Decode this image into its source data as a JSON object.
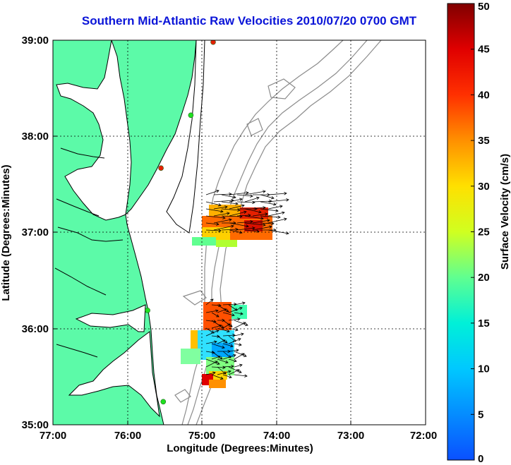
{
  "title": "Southern Mid-Atlantic Raw Velocities 2010/07/20 0700 GMT",
  "map": {
    "xlabel": "Longitude (Degrees:Minutes)",
    "ylabel": "Latitude (Degrees:Minutes)",
    "x_ticks": [
      "77:00",
      "76:00",
      "75:00",
      "74:00",
      "73:00",
      "72:00"
    ],
    "y_ticks": [
      "39:00",
      "38:00",
      "37:00",
      "36:00",
      "35:00"
    ],
    "lon_range": [
      -77,
      -72
    ],
    "lat_range": [
      35,
      39
    ],
    "grid": "dotted",
    "colors": {
      "land": "#5cfaa8",
      "coast": "#000000",
      "bathymetry": "#8c8c8c",
      "title": "#0a14d8"
    }
  },
  "stations": [
    {
      "lon": -74.85,
      "lat": 38.98,
      "status": "red"
    },
    {
      "lon": -75.15,
      "lat": 38.22,
      "status": "green"
    },
    {
      "lon": -75.55,
      "lat": 37.67,
      "status": "red"
    },
    {
      "lon": -75.73,
      "lat": 36.19,
      "status": "green"
    },
    {
      "lon": -75.52,
      "lat": 35.24,
      "status": "green"
    }
  ],
  "colorbar": {
    "label": "Surface Velocity (cm/s)",
    "ticks": [
      "0",
      "5",
      "10",
      "15",
      "20",
      "25",
      "30",
      "35",
      "40",
      "45",
      "50"
    ],
    "min": 0,
    "max": 50
  }
}
